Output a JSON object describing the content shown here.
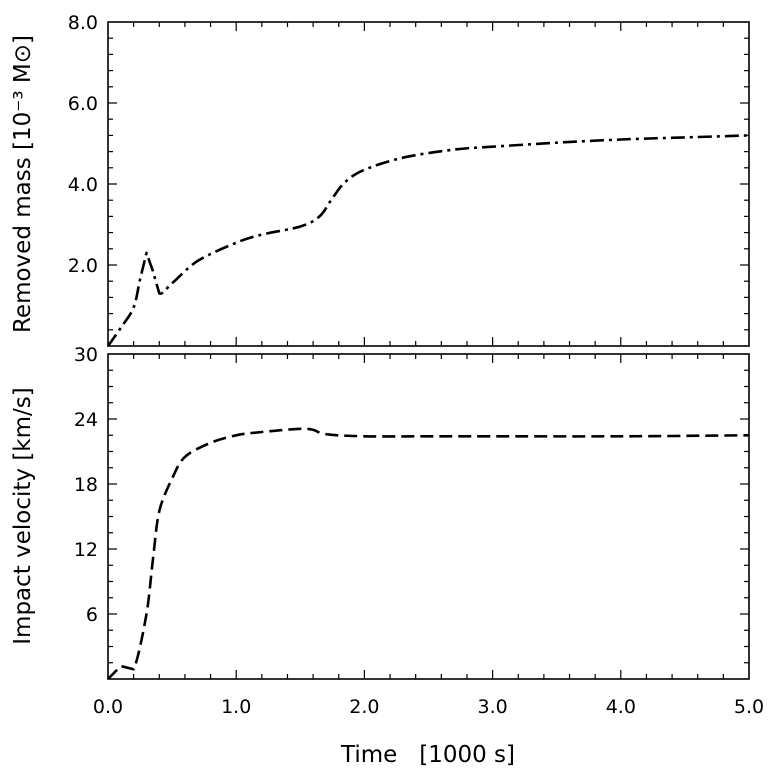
{
  "chart_data": [
    {
      "type": "line",
      "ylabel": "Removed mass [10⁻³ M⊙]",
      "xlim": [
        0,
        5.0
      ],
      "ylim": [
        0,
        8.0
      ],
      "yticks": [
        "2.0",
        "4.0",
        "6.0",
        "8.0"
      ],
      "y_minor_step": 0.4,
      "line_style": "dash-dot",
      "series": [
        {
          "x": [
            0.0,
            0.1,
            0.2,
            0.25,
            0.3,
            0.35,
            0.4,
            0.5,
            0.7,
            1.0,
            1.2,
            1.5,
            1.65,
            1.75,
            1.85,
            2.0,
            2.3,
            2.7,
            3.0,
            3.5,
            4.0,
            4.5,
            5.0
          ],
          "values": [
            0.0,
            0.45,
            0.95,
            1.65,
            2.3,
            1.85,
            1.3,
            1.55,
            2.1,
            2.55,
            2.75,
            2.95,
            3.2,
            3.65,
            4.05,
            4.35,
            4.65,
            4.85,
            4.92,
            5.02,
            5.1,
            5.15,
            5.2
          ]
        }
      ]
    },
    {
      "type": "line",
      "ylabel": "Impact velocity [km/s]",
      "xlabel": "Time   [1000 s]",
      "xlim": [
        0,
        5.0
      ],
      "ylim": [
        0,
        30
      ],
      "xticks": [
        "0.0",
        "1.0",
        "2.0",
        "3.0",
        "4.0",
        "5.0"
      ],
      "yticks": [
        "6",
        "12",
        "18",
        "24",
        "30"
      ],
      "x_minor_step": 0.2,
      "y_minor_step": 1.5,
      "line_style": "dashed",
      "series": [
        {
          "x": [
            0.0,
            0.1,
            0.2,
            0.3,
            0.35,
            0.4,
            0.5,
            0.6,
            0.8,
            1.0,
            1.2,
            1.5,
            1.6,
            1.7,
            2.0,
            2.5,
            3.0,
            4.0,
            5.0
          ],
          "values": [
            0.0,
            1.2,
            0.9,
            6.0,
            11.0,
            15.5,
            18.5,
            20.5,
            21.8,
            22.5,
            22.8,
            23.1,
            23.0,
            22.6,
            22.4,
            22.4,
            22.4,
            22.4,
            22.5
          ]
        }
      ]
    }
  ]
}
